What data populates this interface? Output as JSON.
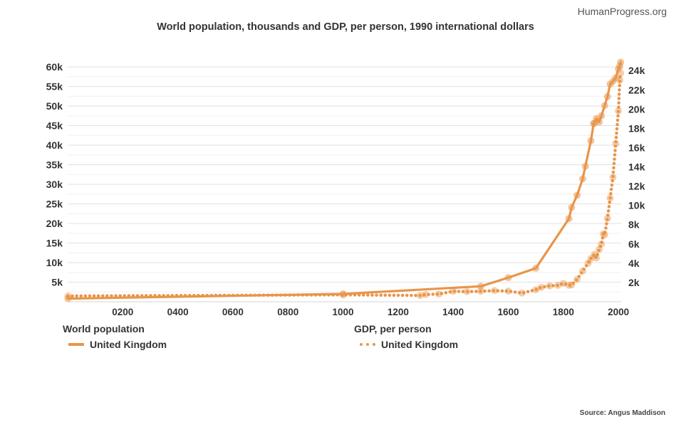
{
  "header": {
    "brand": "HumanProgress.org"
  },
  "chart_data": {
    "type": "line",
    "title": "World population, thousands and GDP, per person, 1990 international dollars",
    "x_ticks": [
      "0200",
      "0400",
      "0600",
      "0800",
      "1000",
      "1200",
      "1400",
      "1600",
      "1800",
      "2000"
    ],
    "x_tick_values": [
      200,
      400,
      600,
      800,
      1000,
      1200,
      1400,
      1600,
      1800,
      2000
    ],
    "xlim": [
      0,
      2010
    ],
    "y_left": {
      "ticks": [
        "5k",
        "10k",
        "15k",
        "20k",
        "25k",
        "30k",
        "35k",
        "40k",
        "45k",
        "50k",
        "55k",
        "60k"
      ],
      "tick_values": [
        5000,
        10000,
        15000,
        20000,
        25000,
        30000,
        35000,
        40000,
        45000,
        50000,
        55000,
        60000
      ],
      "ylim": [
        0,
        62000
      ]
    },
    "y_right": {
      "ticks": [
        "2k",
        "4k",
        "6k",
        "8k",
        "10k",
        "12k",
        "14k",
        "16k",
        "18k",
        "20k",
        "22k",
        "24k"
      ],
      "tick_values": [
        2000,
        4000,
        6000,
        8000,
        10000,
        12000,
        14000,
        16000,
        18000,
        20000,
        22000,
        24000
      ],
      "ylim": [
        0,
        25200
      ]
    },
    "color": "#e8954a",
    "series": [
      {
        "name": "United Kingdom",
        "legend_group": "World population",
        "axis": "left",
        "style": "solid",
        "x": [
          1,
          1000,
          1500,
          1600,
          1700,
          1820,
          1830,
          1850,
          1870,
          1880,
          1900,
          1910,
          1913,
          1920,
          1930,
          1938,
          1950,
          1960,
          1970,
          1980,
          1990,
          2000,
          2005,
          2008
        ],
        "y": [
          800,
          2000,
          3942,
          6170,
          8565,
          21239,
          24100,
          27200,
          31400,
          34600,
          41100,
          45500,
          45650,
          46800,
          45900,
          47500,
          50100,
          52400,
          55600,
          56300,
          57200,
          59500,
          60200,
          61200
        ]
      },
      {
        "name": "United Kingdom",
        "legend_group": "GDP, per person",
        "axis": "right",
        "style": "dotted",
        "x": [
          1,
          1000,
          1280,
          1300,
          1348,
          1400,
          1450,
          1500,
          1550,
          1600,
          1650,
          1700,
          1720,
          1750,
          1780,
          1800,
          1820,
          1830,
          1850,
          1870,
          1890,
          1900,
          1913,
          1920,
          1930,
          1938,
          1945,
          1950,
          1960,
          1970,
          1980,
          1990,
          2000,
          2005,
          2008
        ],
        "y": [
          600,
          714,
          650,
          750,
          800,
          1090,
          1050,
          1086,
          1150,
          1100,
          900,
          1250,
          1500,
          1650,
          1700,
          1900,
          1706,
          1749,
          2330,
          3190,
          4009,
          4492,
          4921,
          4548,
          5441,
          5983,
          7056,
          6939,
          8645,
          10767,
          12931,
          16430,
          19817,
          23000,
          23742
        ]
      }
    ]
  },
  "legend": {
    "left_title": "World population",
    "left_item": "United Kingdom",
    "right_title": "GDP, per person",
    "right_item": "United Kingdom"
  },
  "footer": {
    "source": "Source: Angus Maddison"
  }
}
